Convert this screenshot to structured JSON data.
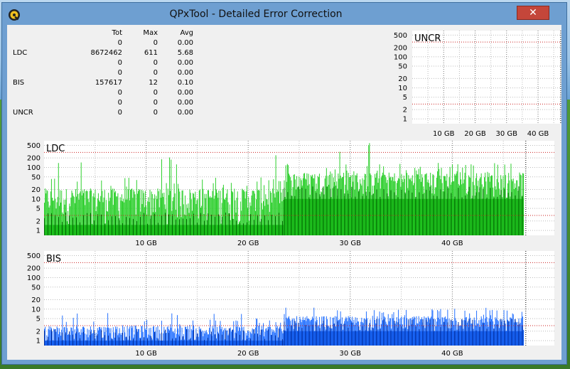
{
  "window": {
    "title": "QPxTool - Detailed Error Correction",
    "close_label": "✕",
    "app_icon": "qpxtool-logo-icon"
  },
  "stats": {
    "headers": [
      "Tot",
      "Max",
      "Avg"
    ],
    "rows": [
      {
        "label": "",
        "tot": "0",
        "max": "0",
        "avg": "0.00"
      },
      {
        "label": "LDC",
        "tot": "8672462",
        "max": "611",
        "avg": "5.68"
      },
      {
        "label": "",
        "tot": "0",
        "max": "0",
        "avg": "0.00"
      },
      {
        "label": "",
        "tot": "0",
        "max": "0",
        "avg": "0.00"
      },
      {
        "label": "BIS",
        "tot": "157617",
        "max": "12",
        "avg": "0.10"
      },
      {
        "label": "",
        "tot": "0",
        "max": "0",
        "avg": "0.00"
      },
      {
        "label": "",
        "tot": "0",
        "max": "0",
        "avg": "0.00"
      },
      {
        "label": "UNCR",
        "tot": "0",
        "max": "0",
        "avg": "0.00"
      }
    ]
  },
  "colors": {
    "ldc_light": "#22cc22",
    "ldc_dark": "#006600",
    "bis_light": "#1a6aff",
    "bis_dark": "#002a99",
    "limit_line": "#cc2222"
  },
  "chart_data": [
    {
      "type": "bar",
      "title": "UNCR",
      "y_scale": "log",
      "y_ticks": [
        "1",
        "2",
        "5",
        "10",
        "20",
        "50",
        "100",
        "200",
        "500"
      ],
      "x_ticks": [
        "10 GB",
        "20 GB",
        "30 GB",
        "40 GB"
      ],
      "x_range_gb": [
        0,
        47
      ],
      "limit_lines": [
        3,
        300
      ],
      "values": []
    },
    {
      "type": "bar",
      "title": "LDC",
      "y_scale": "log",
      "y_ticks": [
        "1",
        "2",
        "5",
        "10",
        "20",
        "50",
        "100",
        "200",
        "500"
      ],
      "x_ticks": [
        "10 GB",
        "20 GB",
        "30 GB",
        "40 GB"
      ],
      "x_range_gb": [
        0,
        50
      ],
      "limit_lines": [
        3,
        300
      ],
      "segments": [
        {
          "from_gb": 0,
          "to_gb": 23.5,
          "base": 1.5,
          "typical": 20,
          "max": 250
        },
        {
          "from_gb": 23.5,
          "to_gb": 47,
          "base": 10,
          "typical": 60,
          "max": 611
        }
      ]
    },
    {
      "type": "bar",
      "title": "BIS",
      "y_scale": "log",
      "y_ticks": [
        "1",
        "2",
        "5",
        "10",
        "20",
        "50",
        "100",
        "200",
        "500"
      ],
      "x_ticks": [
        "10 GB",
        "20 GB",
        "30 GB",
        "40 GB"
      ],
      "x_range_gb": [
        0,
        50
      ],
      "limit_lines": [
        3,
        300
      ],
      "segments": [
        {
          "from_gb": 0,
          "to_gb": 23.5,
          "base": 1,
          "typical": 2,
          "max": 8
        },
        {
          "from_gb": 23.5,
          "to_gb": 47,
          "base": 2,
          "typical": 4,
          "max": 12
        }
      ]
    }
  ]
}
